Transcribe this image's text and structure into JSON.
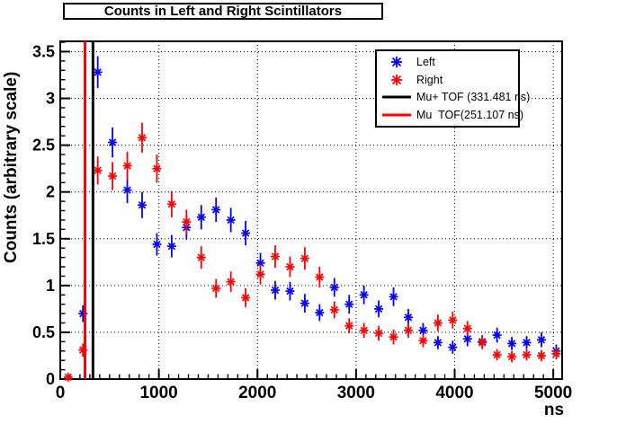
{
  "title": "Counts in Left and Right Scintillators",
  "chart_data": {
    "type": "scatter",
    "title": "Counts in Left and Right Scintillators",
    "xlabel": "ns",
    "ylabel": "Counts (arbitrary scale)",
    "xlim": [
      0,
      5090
    ],
    "ylim": [
      0,
      3.61
    ],
    "x_major_ticks": [
      0,
      1000,
      2000,
      3000,
      4000,
      5000
    ],
    "x_minor_step": 100,
    "y_major_ticks": [
      0,
      0.5,
      1,
      1.5,
      2,
      2.5,
      3,
      3.5
    ],
    "y_tick_labels": [
      "0",
      "0.5",
      "1",
      "1.5",
      "2",
      "2.5",
      "3",
      "3.5"
    ],
    "y_minor_step": 0.1,
    "grid": true,
    "legend_position": "top-right",
    "series": [
      {
        "name": "Left",
        "marker": "star",
        "color": "#0000ff",
        "x": [
          230,
          380,
          530,
          680,
          830,
          980,
          1130,
          1280,
          1430,
          1580,
          1730,
          1880,
          2030,
          2180,
          2330,
          2480,
          2630,
          2780,
          2930,
          3080,
          3230,
          3380,
          3530,
          3680,
          3830,
          3980,
          4130,
          4280,
          4430,
          4580,
          4730,
          4880,
          5030
        ],
        "y": [
          0.7,
          3.28,
          2.53,
          2.02,
          1.86,
          1.44,
          1.42,
          1.62,
          1.73,
          1.81,
          1.7,
          1.56,
          1.24,
          0.95,
          0.94,
          0.81,
          0.71,
          0.98,
          0.8,
          0.9,
          0.75,
          0.88,
          0.66,
          0.52,
          0.39,
          0.34,
          0.43,
          0.4,
          0.47,
          0.38,
          0.39,
          0.42,
          0.3
        ],
        "yerr": [
          0.09,
          0.17,
          0.16,
          0.14,
          0.14,
          0.12,
          0.12,
          0.13,
          0.13,
          0.13,
          0.13,
          0.13,
          0.11,
          0.1,
          0.1,
          0.1,
          0.09,
          0.1,
          0.1,
          0.1,
          0.09,
          0.1,
          0.09,
          0.08,
          0.07,
          0.07,
          0.08,
          0.07,
          0.08,
          0.07,
          0.07,
          0.08,
          0.07
        ]
      },
      {
        "name": "Right",
        "marker": "star",
        "color": "#ff0000",
        "x": [
          80,
          230,
          380,
          530,
          680,
          830,
          980,
          1130,
          1280,
          1430,
          1580,
          1730,
          1880,
          2030,
          2180,
          2330,
          2480,
          2630,
          2780,
          2930,
          3080,
          3230,
          3380,
          3530,
          3680,
          3830,
          3980,
          4130,
          4280,
          4430,
          4580,
          4730,
          4880,
          5030
        ],
        "y": [
          0.02,
          0.31,
          2.23,
          2.17,
          2.28,
          2.58,
          2.25,
          1.87,
          1.68,
          1.3,
          0.97,
          1.04,
          0.87,
          1.12,
          1.31,
          1.2,
          1.29,
          1.09,
          0.74,
          0.57,
          0.52,
          0.49,
          0.45,
          0.52,
          0.41,
          0.6,
          0.63,
          0.54,
          0.39,
          0.26,
          0.24,
          0.26,
          0.25,
          0.27
        ],
        "yerr": [
          0.03,
          0.07,
          0.15,
          0.15,
          0.15,
          0.16,
          0.15,
          0.14,
          0.13,
          0.12,
          0.1,
          0.11,
          0.1,
          0.11,
          0.12,
          0.11,
          0.12,
          0.11,
          0.09,
          0.08,
          0.08,
          0.08,
          0.08,
          0.08,
          0.07,
          0.09,
          0.09,
          0.08,
          0.07,
          0.06,
          0.06,
          0.06,
          0.06,
          0.06
        ]
      }
    ],
    "vlines": [
      {
        "label": "Mu+ TOF (331.481 ns)",
        "x": 331.481,
        "color": "#000000",
        "width": 3
      },
      {
        "label": "Mu  TOF(251.107 ns)",
        "x": 251.107,
        "color": "#ff0000",
        "width": 3
      }
    ]
  },
  "legend": {
    "entries": [
      {
        "label": "Left",
        "type": "star",
        "color": "#0000ff"
      },
      {
        "label": "Right",
        "type": "star",
        "color": "#ff0000"
      },
      {
        "label": "Mu+ TOF (331.481 ns)",
        "type": "line",
        "color": "#000000"
      },
      {
        "label": "Mu  TOF(251.107 ns)",
        "type": "line",
        "color": "#ff0000"
      }
    ]
  },
  "colors": {
    "left_series": "#0000ff",
    "right_series": "#ff0000",
    "frame": "#000000",
    "background": "#ffffff",
    "grid": "#000000"
  }
}
